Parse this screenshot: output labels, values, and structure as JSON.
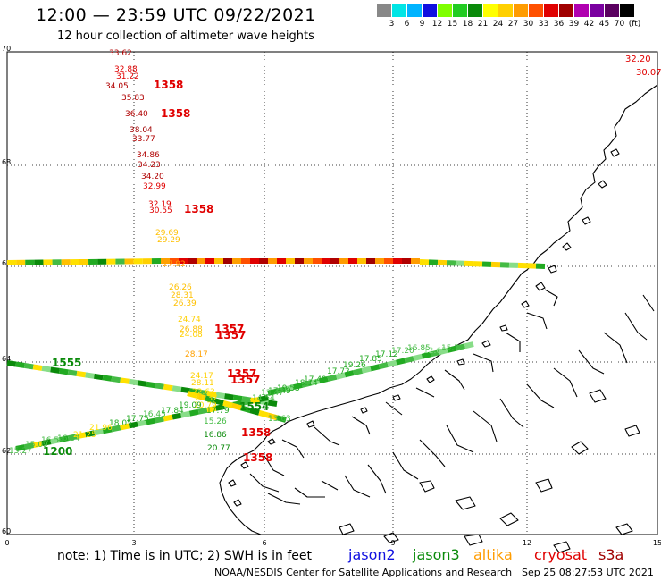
{
  "header": {
    "title": "12:00 — 23:59 UTC 09/22/2021",
    "subtitle": "12 hour collection of altimeter wave heights"
  },
  "legend": {
    "colors": [
      "#888888",
      "#00e5e5",
      "#00b4ff",
      "#1010e0",
      "#7fff00",
      "#22cc22",
      "#0a8a0a",
      "#ffff00",
      "#ffd000",
      "#ff9c00",
      "#ff5000",
      "#e00000",
      "#a00000",
      "#b000b0",
      "#7a00a0",
      "#5a0060",
      "#000000"
    ],
    "labels": [
      "3",
      "6",
      "9",
      "12",
      "15",
      "18",
      "21",
      "24",
      "27",
      "30",
      "33",
      "36",
      "39",
      "42",
      "45",
      "70",
      "(ft)"
    ],
    "unit": "(ft)"
  },
  "axes": {
    "lat_labels": [
      "70",
      "68",
      "66",
      "64",
      "62",
      "60"
    ],
    "lon_labels": [
      "0",
      "3",
      "6",
      "9",
      "12",
      "15"
    ]
  },
  "readings": [
    {
      "t": "33.62",
      "c": "#b00000"
    },
    {
      "t": "32.88",
      "c": "#e00000"
    },
    {
      "t": "31.22",
      "c": "#e00000"
    },
    {
      "t": "34.05",
      "c": "#b00000"
    },
    {
      "t": "1358",
      "c": "#e00000"
    },
    {
      "t": "35.83",
      "c": "#b00000"
    },
    {
      "t": "36.40",
      "c": "#b00000"
    },
    {
      "t": "1358",
      "c": "#e00000"
    },
    {
      "t": "38.04",
      "c": "#a00000"
    },
    {
      "t": "33.77",
      "c": "#b00000"
    },
    {
      "t": "34.86",
      "c": "#b00000"
    },
    {
      "t": "34.23",
      "c": "#b00000"
    },
    {
      "t": "34.20",
      "c": "#b00000"
    },
    {
      "t": "32.99",
      "c": "#e00000"
    },
    {
      "t": "32.19",
      "c": "#e00000"
    },
    {
      "t": "30.55",
      "c": "#e00000"
    },
    {
      "t": "1358",
      "c": "#e00000"
    },
    {
      "t": "29.69",
      "c": "#ffc000"
    },
    {
      "t": "29.29",
      "c": "#ffc000"
    },
    {
      "t": "27.92",
      "c": "#ffa000"
    },
    {
      "t": "26.26",
      "c": "#ffc000"
    },
    {
      "t": "28.31",
      "c": "#ffc000"
    },
    {
      "t": "26.39",
      "c": "#ffc000"
    },
    {
      "t": "24.74",
      "c": "#ffd000"
    },
    {
      "t": "26.88",
      "c": "#ffc000"
    },
    {
      "t": "24.08",
      "c": "#ffd000"
    },
    {
      "t": "1357",
      "c": "#e00000"
    },
    {
      "t": "1357",
      "c": "#e00000"
    },
    {
      "t": "28.17",
      "c": "#ffa000"
    },
    {
      "t": "24.17",
      "c": "#ffd000"
    },
    {
      "t": "1357",
      "c": "#e00000"
    },
    {
      "t": "28.11",
      "c": "#ffd000"
    },
    {
      "t": "1357",
      "c": "#e00000"
    },
    {
      "t": "22.63",
      "c": "#ffe000"
    },
    {
      "t": "21.37",
      "c": "#ffe000"
    },
    {
      "t": "20.79",
      "c": "#ffe000"
    },
    {
      "t": "1554",
      "c": "#0a8a0a"
    },
    {
      "t": "17.79",
      "c": "#22aa22"
    },
    {
      "t": "15.26",
      "c": "#44bb44"
    },
    {
      "t": "16.86",
      "c": "#0a8a0a"
    },
    {
      "t": "1358",
      "c": "#e00000"
    },
    {
      "t": "20.77",
      "c": "#0a8a0a"
    },
    {
      "t": "1358",
      "c": "#e00000"
    },
    {
      "t": "32.20",
      "c": "#e00000"
    },
    {
      "t": "30.07",
      "c": "#e00000"
    },
    {
      "t": "1555",
      "c": "#0a8a0a"
    },
    {
      "t": "1200",
      "c": "#0a8a0a"
    },
    {
      "t": "15.27",
      "c": "#44bb44"
    },
    {
      "t": "15.09",
      "c": "#44bb44"
    },
    {
      "t": "16.54",
      "c": "#44bb44"
    },
    {
      "t": "16.34",
      "c": "#44bb44"
    },
    {
      "t": "21.25",
      "c": "#ffe000"
    },
    {
      "t": "21.96",
      "c": "#ffe000"
    },
    {
      "t": "18.05",
      "c": "#22aa22"
    },
    {
      "t": "17.75",
      "c": "#22aa22"
    },
    {
      "t": "16.45",
      "c": "#44bb44"
    },
    {
      "t": "17.84",
      "c": "#22aa22"
    },
    {
      "t": "19.09",
      "c": "#22aa22"
    },
    {
      "t": "17.49",
      "c": "#22aa22"
    },
    {
      "t": "18.14",
      "c": "#22aa22"
    },
    {
      "t": "19.53",
      "c": "#22aa22"
    },
    {
      "t": "17.49",
      "c": "#22aa22"
    },
    {
      "t": "17.72",
      "c": "#22aa22"
    },
    {
      "t": "19.26",
      "c": "#22aa22"
    },
    {
      "t": "17.85",
      "c": "#22aa22"
    },
    {
      "t": "17.12",
      "c": "#22aa22"
    },
    {
      "t": "17.20",
      "c": "#44bb44"
    },
    {
      "t": "16.85",
      "c": "#44bb44"
    },
    {
      "t": "12.65",
      "c": "#88dd88"
    },
    {
      "t": "15.72",
      "c": "#44bb44"
    },
    {
      "t": "13.47",
      "c": "#44bb44"
    },
    {
      "t": "14.54",
      "c": "#44bb44"
    },
    {
      "t": "13.63",
      "c": "#44bb44"
    }
  ],
  "footer": {
    "note": "note:  1) Time is in UTC;  2) SWH is in feet",
    "satellites": [
      {
        "name": "jason2",
        "color": "#1010e0"
      },
      {
        "name": "jason3",
        "color": "#0a8a0a"
      },
      {
        "name": "altika",
        "color": "#ff9c00"
      },
      {
        "name": "cryosat",
        "color": "#e00000"
      },
      {
        "name": "s3a",
        "color": "#a00000"
      }
    ],
    "credit": "NOAA/NESDIS Center for Satellite Applications and Research",
    "timestamp": "Sep 25 08:27:53 UTC 2021"
  }
}
